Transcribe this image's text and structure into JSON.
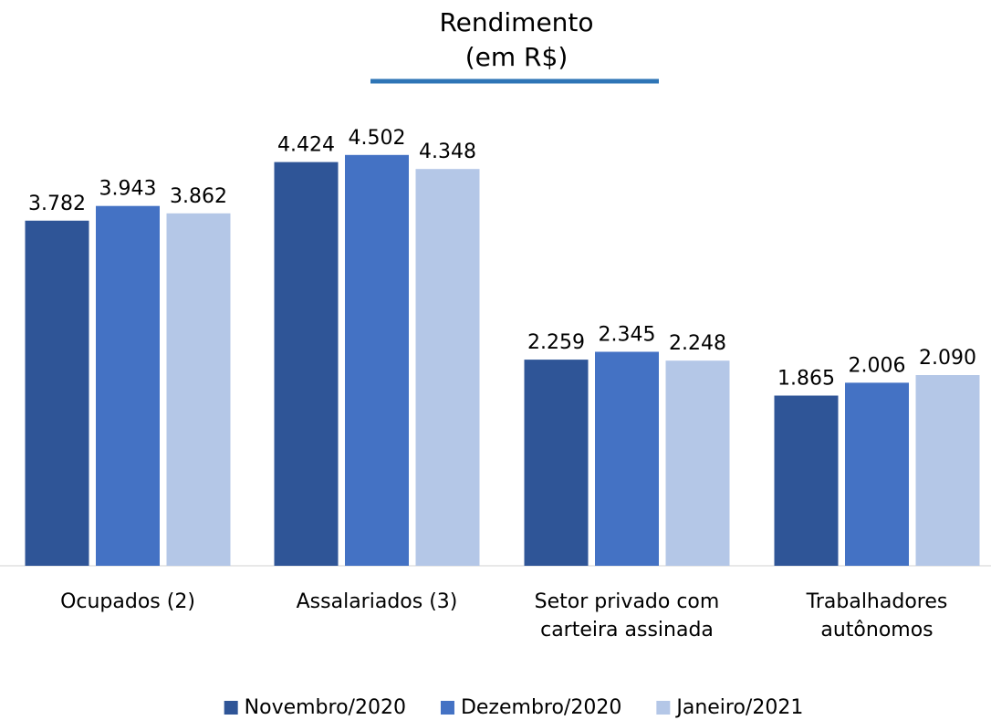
{
  "chart_data": {
    "type": "bar",
    "title": "Rendimento",
    "subtitle": "(em R$)",
    "categories": [
      "Ocupados (2)",
      "Assalariados (3)",
      "Setor privado com carteira assinada",
      "Trabalhadores autônomos"
    ],
    "series": [
      {
        "name": "Novembro/2020",
        "color": "#2f5597",
        "values": [
          3782,
          4424,
          2259,
          1865
        ],
        "value_labels": [
          "3.782",
          "4.424",
          "2.259",
          "1.865"
        ]
      },
      {
        "name": "Dezembro/2020",
        "color": "#4472c4",
        "values": [
          3943,
          4502,
          2345,
          2006
        ],
        "value_labels": [
          "3.943",
          "4.502",
          "2.345",
          "2.006"
        ]
      },
      {
        "name": "Janeiro/2021",
        "color": "#b4c7e7",
        "values": [
          3862,
          4348,
          2248,
          2090
        ],
        "value_labels": [
          "3.862",
          "4.348",
          "2.248",
          "2.090"
        ]
      }
    ],
    "ylim": [
      0,
      5000
    ],
    "legend": "bottom"
  }
}
